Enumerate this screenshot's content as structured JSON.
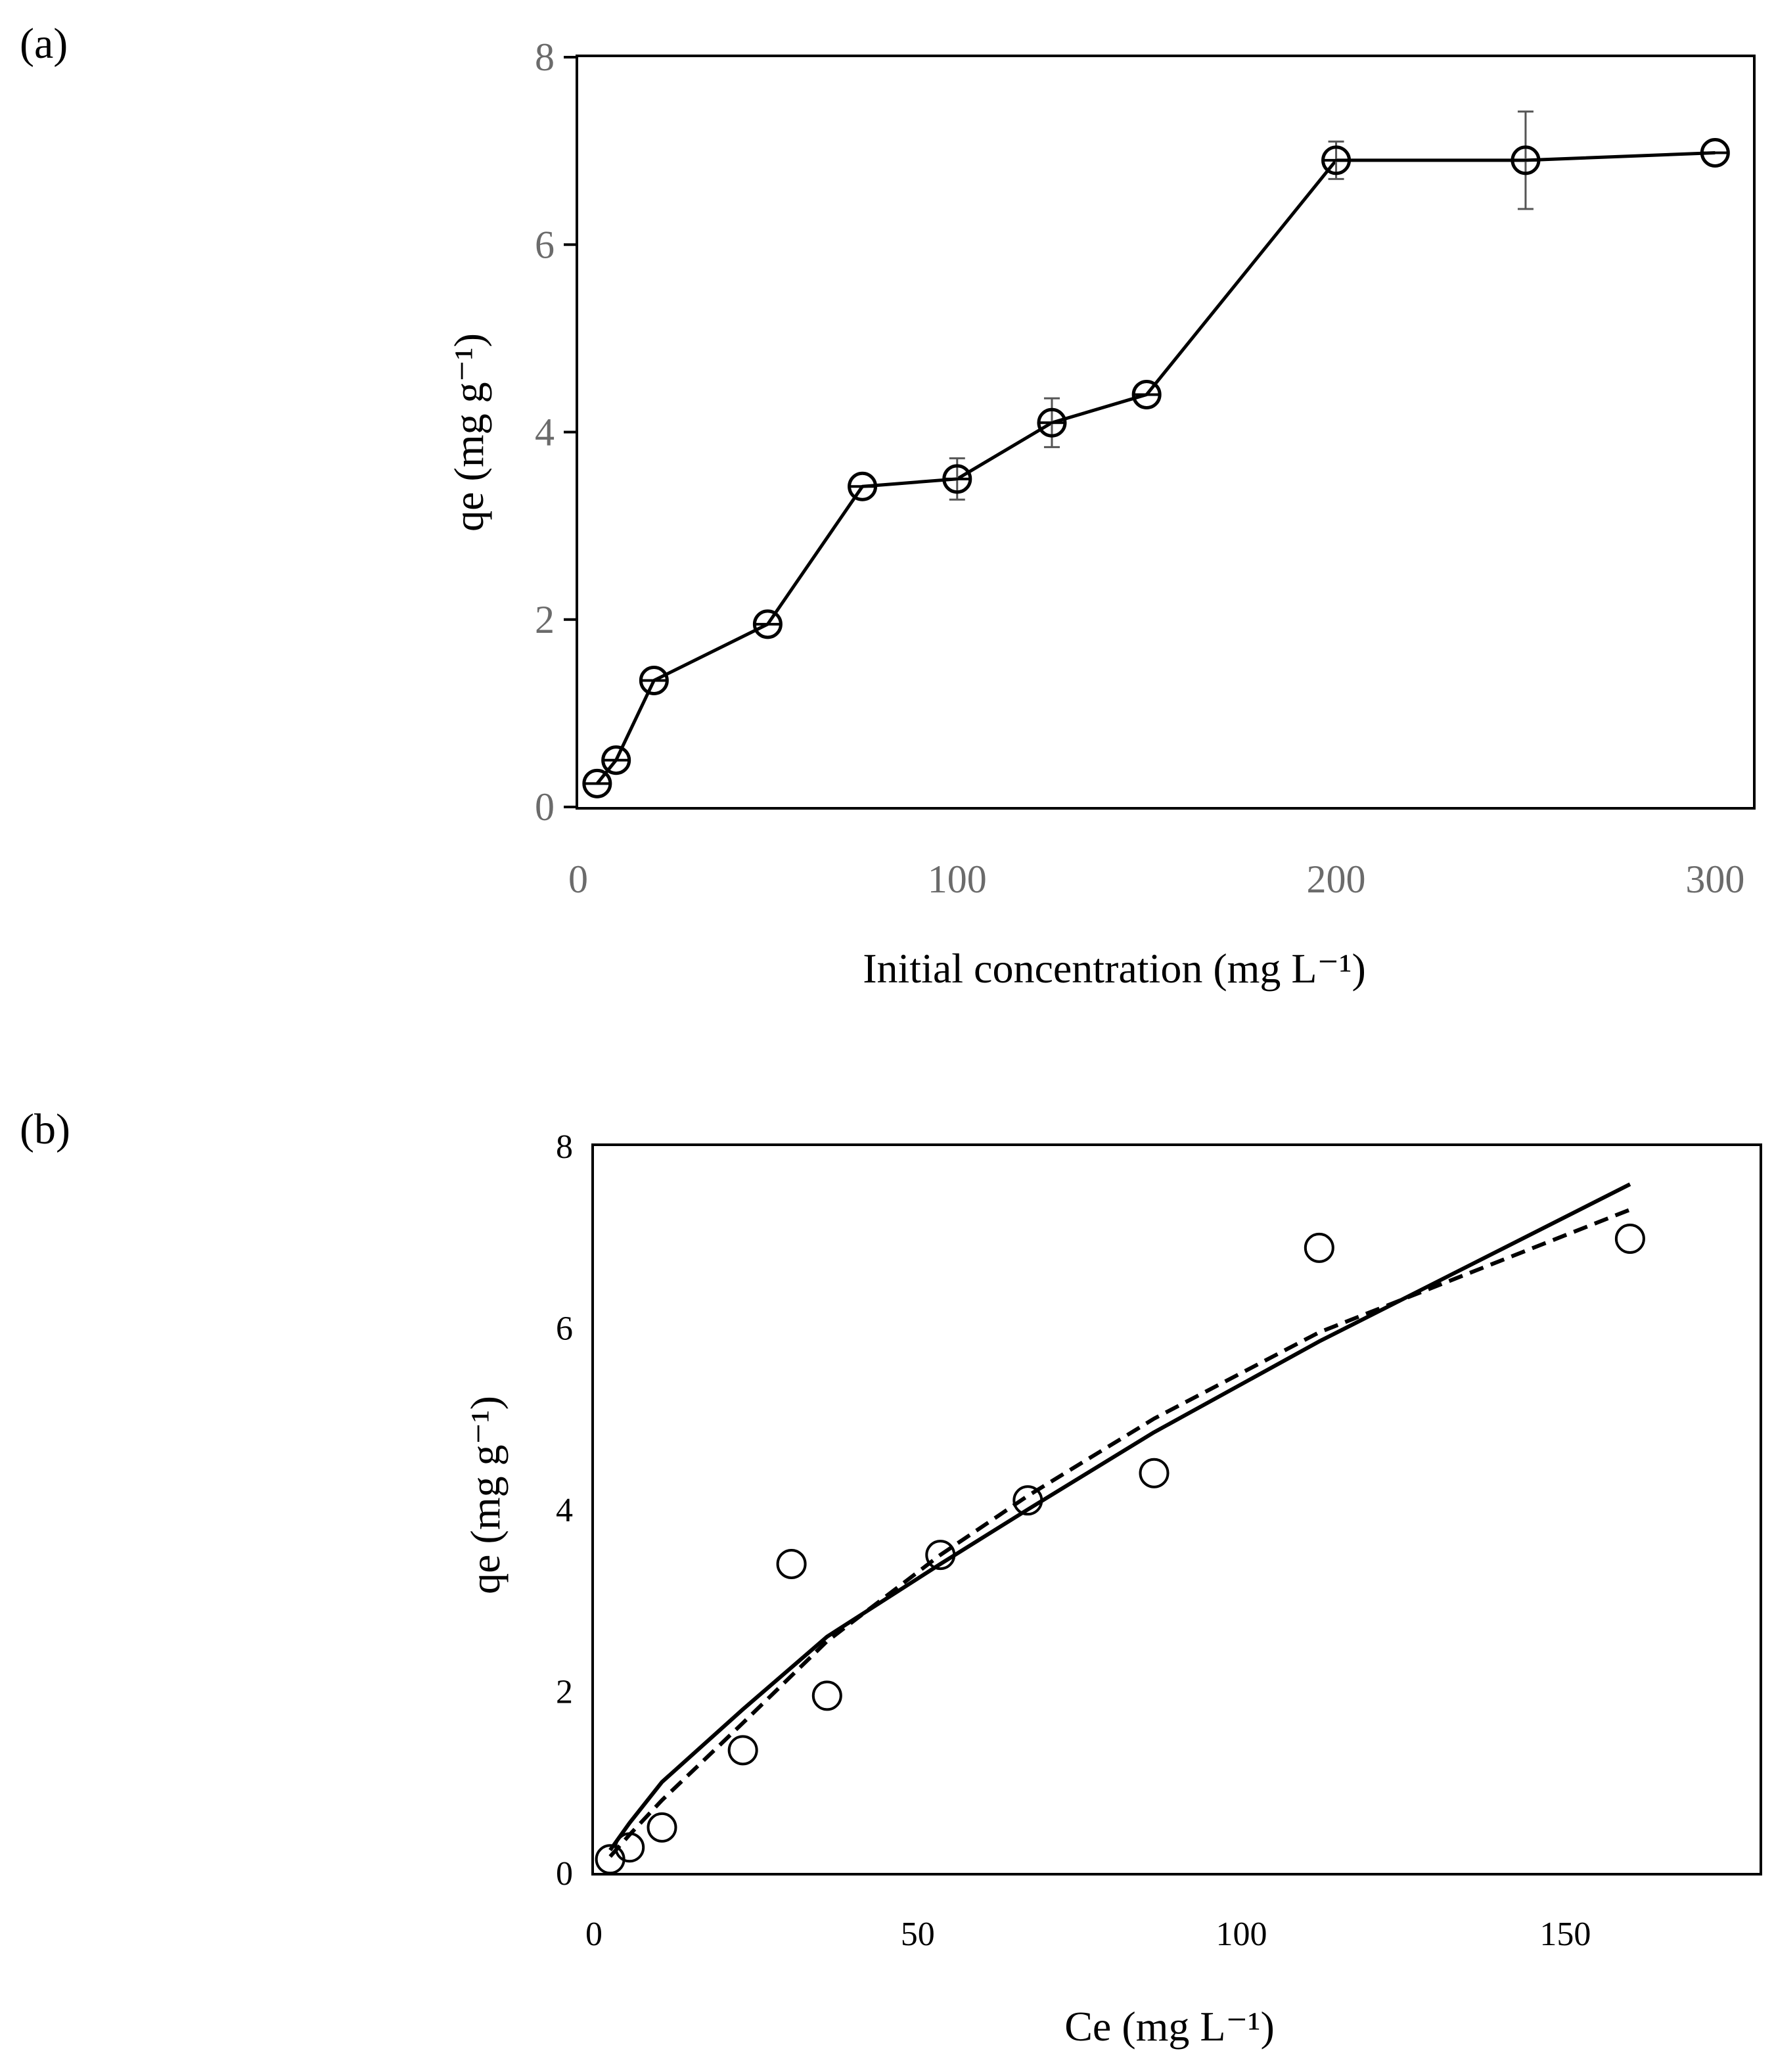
{
  "chart_data": [
    {
      "panel_label": "(a)",
      "type": "line",
      "xlabel": "Initial concentration (mg L⁻¹)",
      "ylabel": "qe (mg g⁻¹)",
      "xlim": [
        0,
        310
      ],
      "ylim": [
        0,
        8
      ],
      "xticks": [
        "0",
        "100",
        "200",
        "300"
      ],
      "xtick_values": [
        0,
        100,
        200,
        300
      ],
      "yticks": [
        "0",
        "2",
        "4",
        "6",
        "8"
      ],
      "ytick_values": [
        0,
        2,
        4,
        6,
        8
      ],
      "grid": false,
      "series": [
        {
          "name": "qe",
          "marker": "open-circle",
          "x": [
            5,
            10,
            20,
            50,
            75,
            100,
            125,
            150,
            200,
            250,
            300
          ],
          "y": [
            0.25,
            0.5,
            1.35,
            1.95,
            3.42,
            3.5,
            4.1,
            4.4,
            6.9,
            6.9,
            6.98
          ],
          "error": [
            0,
            0,
            0,
            0,
            0,
            0.22,
            0.26,
            0,
            0.2,
            0.52,
            0
          ]
        }
      ]
    },
    {
      "panel_label": "(b)",
      "type": "scatter",
      "xlabel": "Ce (mg L⁻¹)",
      "ylabel": "qe (mg g⁻¹)",
      "xlim": [
        0,
        180
      ],
      "ylim": [
        0,
        8
      ],
      "xticks": [
        "0",
        "50",
        "100",
        "150"
      ],
      "xtick_values": [
        0,
        50,
        100,
        150
      ],
      "yticks": [
        "0",
        "2",
        "4",
        "6",
        "8"
      ],
      "ytick_values": [
        0,
        2,
        4,
        6,
        8
      ],
      "grid": false,
      "points": {
        "x": [
          2.5,
          5.5,
          10.5,
          23,
          30.5,
          36,
          53.5,
          67,
          86.5,
          112,
          160
        ],
        "y": [
          0.15,
          0.28,
          0.5,
          1.35,
          3.4,
          1.95,
          3.5,
          4.1,
          4.4,
          6.88,
          6.98
        ]
      },
      "series": [
        {
          "name": "solid fit",
          "style": "solid",
          "x": [
            2.5,
            5.5,
            10.5,
            23,
            36,
            53.5,
            67,
            86.5,
            112,
            160
          ],
          "y": [
            0.25,
            0.55,
            1.0,
            1.8,
            2.6,
            3.4,
            4.0,
            4.85,
            5.85,
            7.58
          ]
        },
        {
          "name": "dashed fit",
          "style": "dashed",
          "x": [
            2.5,
            5.5,
            10.5,
            23,
            36,
            53.5,
            67,
            86.5,
            112,
            160
          ],
          "y": [
            0.18,
            0.42,
            0.8,
            1.65,
            2.55,
            3.5,
            4.15,
            5.0,
            5.95,
            7.3
          ]
        }
      ]
    }
  ]
}
